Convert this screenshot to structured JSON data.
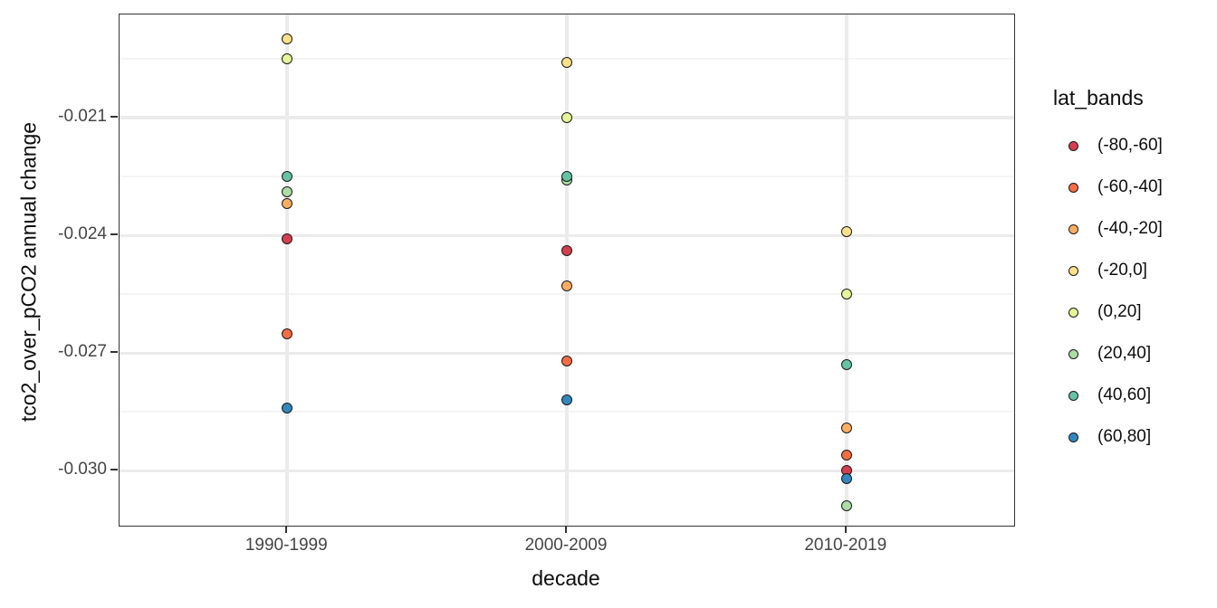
{
  "chart_data": {
    "type": "scatter",
    "title": "",
    "xlabel": "decade",
    "ylabel": "tco2_over_pCO2 annual change",
    "categories": [
      "1990-1999",
      "2000-2009",
      "2010-2019"
    ],
    "series": [
      {
        "name": "(-80,-60]",
        "color": "#D53E4F",
        "values": [
          -0.0241,
          -0.0244,
          -0.03
        ]
      },
      {
        "name": "(-60,-40]",
        "color": "#F46D43",
        "values": [
          -0.0265,
          -0.0272,
          -0.0296
        ]
      },
      {
        "name": "(-40,-20]",
        "color": "#FDAE61",
        "values": [
          -0.0232,
          -0.0253,
          -0.0289
        ]
      },
      {
        "name": "(-20,0]",
        "color": "#FEE08B",
        "values": [
          -0.019,
          -0.0196,
          -0.0239
        ]
      },
      {
        "name": "(0,20]",
        "color": "#E6F598",
        "values": [
          -0.0195,
          -0.021,
          -0.0255
        ]
      },
      {
        "name": "(20,40]",
        "color": "#ABDDA4",
        "values": [
          -0.0229,
          -0.0226,
          -0.0309
        ]
      },
      {
        "name": "(40,60]",
        "color": "#66C2A5",
        "values": [
          -0.0225,
          -0.0225,
          -0.0273
        ]
      },
      {
        "name": "(60,80]",
        "color": "#3288BD",
        "values": [
          -0.0284,
          -0.0282,
          -0.0302
        ]
      }
    ],
    "legend_title": "lat_bands",
    "legend_position": "right",
    "ylim": [
      -0.0314,
      -0.01837
    ],
    "yticks": {
      "values": [
        -0.021,
        -0.024,
        -0.027,
        -0.03
      ],
      "labels": [
        "-0.021",
        "-0.024",
        "-0.027",
        "-0.030"
      ]
    },
    "yminor": [
      -0.0195,
      -0.0225,
      -0.0255,
      -0.0285
    ],
    "grid": "major+minor",
    "marker": "circle-black-outline"
  },
  "colors": {
    "background": "#ffffff",
    "panel_border": "#333333",
    "grid_major": "#ebebeb",
    "grid_minor": "#f4f4f4",
    "tick_text": "#454545",
    "title_text": "#0d0d0d",
    "point_stroke": "#1a1a1a"
  }
}
